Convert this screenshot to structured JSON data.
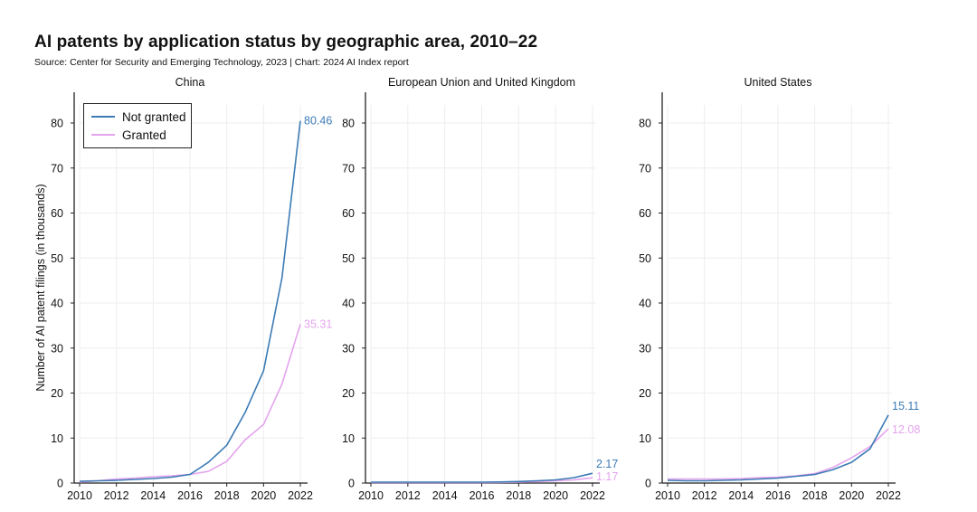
{
  "title": "AI patents by application status by geographic area, 2010–22",
  "subtitle": "Source: Center for Security and Emerging Technology, 2023 | Chart: 2024 AI Index report",
  "colors": {
    "not_granted": "#3c7bb5",
    "granted": "#e4a4ee",
    "axis": "#222222",
    "grid": "#eeeeee"
  },
  "chart_data": {
    "type": "line",
    "ylabel": "Number of AI patent filings (in thousands)",
    "ylim": [
      0,
      85
    ],
    "y_ticks": [
      0,
      10,
      20,
      30,
      40,
      50,
      60,
      70,
      80
    ],
    "x_ticks": [
      2010,
      2012,
      2014,
      2016,
      2018,
      2020,
      2022
    ],
    "x": [
      2010,
      2011,
      2012,
      2013,
      2014,
      2015,
      2016,
      2017,
      2018,
      2019,
      2020,
      2021,
      2022
    ],
    "legend": {
      "position": "top-left",
      "entries": [
        "Not granted",
        "Granted"
      ]
    },
    "panels": [
      {
        "name": "China",
        "series": [
          {
            "name": "Not granted",
            "values": [
              0.4,
              0.5,
              0.6,
              0.8,
              1.0,
              1.3,
              1.9,
              4.6,
              8.4,
              15.7,
              24.9,
              45.6,
              80.46
            ],
            "end_label": "80.46"
          },
          {
            "name": "Granted",
            "values": [
              0.2,
              0.5,
              0.9,
              1.1,
              1.4,
              1.6,
              1.9,
              2.6,
              4.8,
              9.6,
              13.0,
              22.0,
              35.31
            ],
            "end_label": "35.31"
          }
        ]
      },
      {
        "name": "European Union and United Kingdom",
        "series": [
          {
            "name": "Not granted",
            "values": [
              0.2,
              0.2,
              0.2,
              0.2,
              0.2,
              0.2,
              0.2,
              0.25,
              0.35,
              0.5,
              0.7,
              1.2,
              2.17
            ],
            "end_label": "2.17"
          },
          {
            "name": "Granted",
            "values": [
              0.1,
              0.1,
              0.1,
              0.1,
              0.1,
              0.1,
              0.1,
              0.15,
              0.2,
              0.3,
              0.5,
              0.7,
              1.17
            ],
            "end_label": "1.17"
          }
        ]
      },
      {
        "name": "United States",
        "series": [
          {
            "name": "Not granted",
            "values": [
              0.6,
              0.5,
              0.5,
              0.6,
              0.7,
              0.9,
              1.1,
              1.5,
              1.9,
              3.0,
              4.6,
              7.6,
              15.11
            ],
            "end_label": "15.11"
          },
          {
            "name": "Granted",
            "values": [
              0.9,
              0.9,
              0.9,
              0.9,
              1.0,
              1.2,
              1.3,
              1.6,
              2.1,
              3.5,
              5.6,
              8.1,
              12.08
            ],
            "end_label": "12.08"
          }
        ]
      }
    ]
  }
}
